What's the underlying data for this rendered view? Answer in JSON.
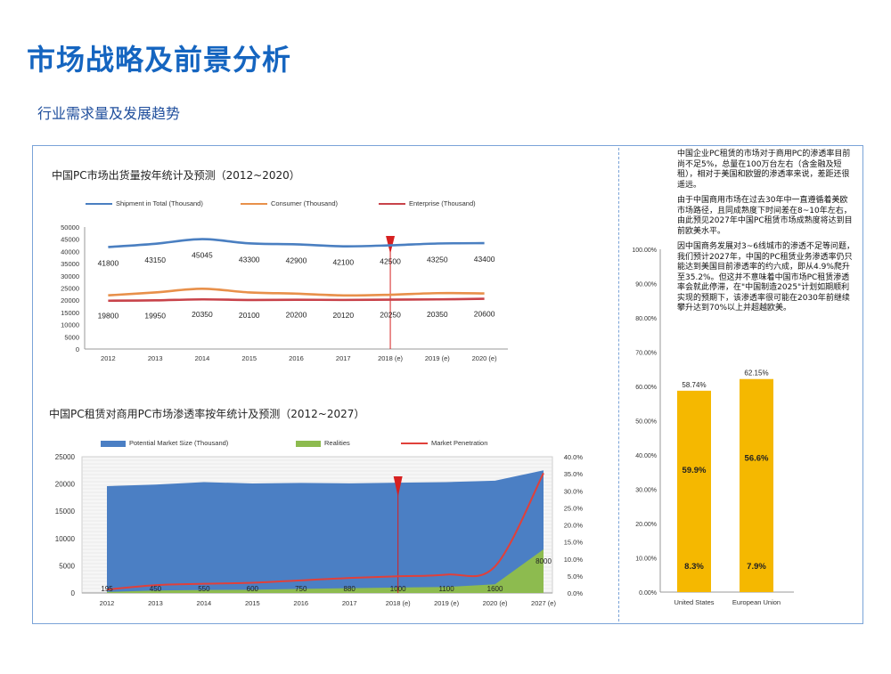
{
  "page": {
    "title": "市场战略及前景分析",
    "subtitle": "行业需求量及发展趋势"
  },
  "colors": {
    "title": "#1565c0",
    "total": "#4a7fc1",
    "consumer": "#e8904a",
    "enterprise": "#c8434a",
    "area_blue": "#4b7fc4",
    "area_green": "#8dbb4f",
    "penetration": "#e0403a",
    "bar": "#f5b800",
    "marker": "#d62020"
  },
  "notes": [
    "中国企业PC租赁的市场对于商用PC的渗透率目前尚不足5%，总量在100万台左右（含金融及短租），相对于美国和欧盟的渗透率来说，差距还很遥远。",
    "由于中国商用市场在过去30年中一直遵循着美欧市场路径，且同成熟度下时间差在8~10年左右，由此预见2027年中国PC租赁市场成熟度将达到目前欧美水平。",
    "因中国商务发展对3~6线城市的渗透不足等问题，我们预计2027年，中国的PC租赁业务渗透率仍只能达到美国目前渗透率的约六成，即从4.9%爬升至35.2%。但这并不意味着中国市场PC租赁渗透率会就此停滞，在\"中国制造2025\"计划如期顺利实现的预期下，该渗透率很可能在2030年前继续攀升达到70%以上并超越欧美。"
  ],
  "chart_data": [
    {
      "type": "line",
      "title": "中国PC市场出货量按年统计及预测（2012~2020）",
      "categories": [
        "2012",
        "2013",
        "2014",
        "2015",
        "2016",
        "2017",
        "2018 (e)",
        "2019 (e)",
        "2020 (e)"
      ],
      "series": [
        {
          "name": "Shipment in Total (Thousand)",
          "values": [
            41800,
            43150,
            45045,
            43300,
            42900,
            42100,
            42500,
            43250,
            43400
          ],
          "labels": [
            "41800",
            "43150",
            "45045",
            "43300",
            "42900",
            "42100",
            "42500",
            "43250",
            "43400"
          ]
        },
        {
          "name": "Consumer (Thousand)",
          "values": [
            22000,
            23200,
            24700,
            23200,
            22700,
            21980,
            22250,
            22900,
            22800
          ]
        },
        {
          "name": "Enterprise (Thousand)",
          "values": [
            19800,
            19950,
            20350,
            20100,
            20200,
            20120,
            20250,
            20350,
            20600
          ],
          "labels": [
            "19800",
            "19950",
            "20350",
            "20100",
            "20200",
            "20120",
            "20250",
            "20350",
            "20600"
          ]
        }
      ],
      "yticks": [
        "0",
        "5000",
        "10000",
        "15000",
        "20000",
        "25000",
        "30000",
        "35000",
        "40000",
        "45000",
        "50000"
      ],
      "ylim": [
        0,
        50000
      ],
      "marker_index": 6
    },
    {
      "type": "area",
      "title": "中国PC租赁对商用PC市场渗透率按年统计及预测（2012~2027）",
      "categories": [
        "2012",
        "2013",
        "2014",
        "2015",
        "2016",
        "2017",
        "2018 (e)",
        "2019 (e)",
        "2020 (e)",
        "2027 (e)"
      ],
      "series": [
        {
          "name": "Potential Market Size (Thousand)",
          "values": [
            19600,
            19900,
            20350,
            20100,
            20200,
            20120,
            20250,
            20350,
            20600,
            22500
          ]
        },
        {
          "name": "Realities",
          "values": [
            195,
            450,
            550,
            600,
            750,
            880,
            1000,
            1100,
            1600,
            8000
          ],
          "labels": [
            "195",
            "450",
            "550",
            "600",
            "750",
            "880",
            "1000",
            "1100",
            "1600",
            "8000"
          ]
        },
        {
          "name": "Market Penetration",
          "axis": "right",
          "values": [
            1.0,
            2.3,
            2.7,
            3.0,
            3.7,
            4.4,
            4.9,
            5.4,
            7.8,
            35.2
          ]
        }
      ],
      "yticks_left": [
        "0",
        "5000",
        "10000",
        "15000",
        "20000",
        "25000"
      ],
      "ylim_left": [
        0,
        25000
      ],
      "yticks_right": [
        "0.0%",
        "5.0%",
        "10.0%",
        "15.0%",
        "20.0%",
        "25.0%",
        "30.0%",
        "35.0%",
        "40.0%"
      ],
      "ylim_right": [
        0,
        40
      ],
      "marker_index": 6
    },
    {
      "type": "bar",
      "categories": [
        "United States",
        "European Union"
      ],
      "values": [
        58.74,
        62.15
      ],
      "value_labels": [
        "58.74%",
        "62.15%"
      ],
      "inner_top_labels": [
        "59.9%",
        "56.6%"
      ],
      "inner_bottom_labels": [
        "8.3%",
        "7.9%"
      ],
      "yticks": [
        "0.00%",
        "10.00%",
        "20.00%",
        "30.00%",
        "40.00%",
        "50.00%",
        "60.00%",
        "70.00%",
        "80.00%",
        "90.00%",
        "100.00%"
      ],
      "ylim": [
        0,
        100
      ]
    }
  ]
}
